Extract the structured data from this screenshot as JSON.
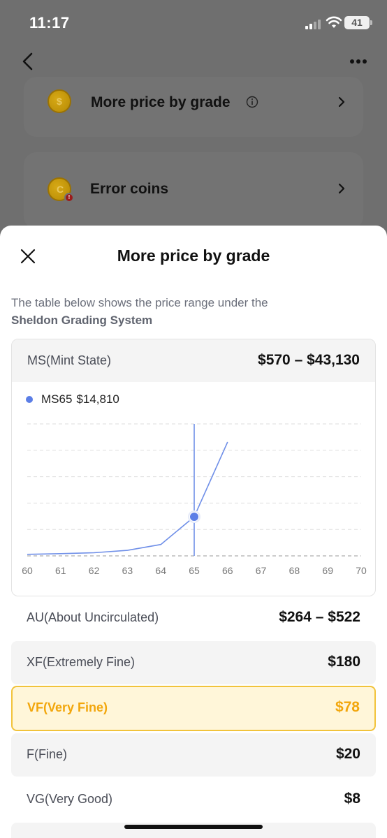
{
  "status": {
    "time": "11:17",
    "battery": "41"
  },
  "background": {
    "rows": [
      {
        "label": "More price by grade",
        "coin_symbol": "$"
      },
      {
        "label": "Error coins",
        "coin_symbol": "C",
        "badge": "!"
      }
    ]
  },
  "sheet": {
    "title": "More price by grade",
    "description_line1": "The table below shows the price range under the",
    "description_line2": "Sheldon Grading System",
    "grades": [
      {
        "name": "MS(Mint State)",
        "price": "$570 – $43,130"
      },
      {
        "name": "AU(About Uncirculated)",
        "price": "$264 – $522"
      },
      {
        "name": "XF(Extremely Fine)",
        "price": "$180"
      },
      {
        "name": "VF(Very Fine)",
        "price": "$78",
        "highlighted": true
      },
      {
        "name": "F(Fine)",
        "price": "$20"
      },
      {
        "name": "VG(Very Good)",
        "price": "$8"
      }
    ]
  },
  "chart_data": {
    "type": "line",
    "legend": {
      "series_label": "MS65",
      "value": "$14,810"
    },
    "x": [
      60,
      61,
      62,
      63,
      64,
      65,
      66
    ],
    "values": [
      570,
      850,
      1200,
      2100,
      4300,
      14810,
      43130
    ],
    "xticks": [
      "60",
      "61",
      "62",
      "63",
      "64",
      "65",
      "66",
      "67",
      "68",
      "69",
      "70"
    ],
    "xlim": [
      60,
      70
    ],
    "ylim": [
      0,
      50000
    ],
    "selected_x": 65,
    "grid": true,
    "color": "#5b7ee6"
  },
  "colors": {
    "accent": "#f2a60b",
    "highlight_bg": "#fff6d9",
    "highlight_border": "#f1c33b",
    "line": "#6f8fe8"
  }
}
